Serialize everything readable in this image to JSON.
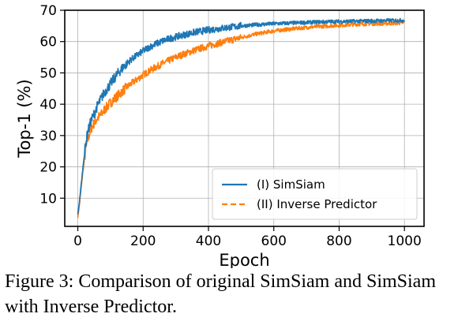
{
  "chart_data": {
    "type": "line",
    "xlabel": "Epoch",
    "ylabel": "Top-1 (%)",
    "xlim": [
      -40,
      1060
    ],
    "ylim": [
      1,
      70
    ],
    "xticks": [
      0,
      200,
      400,
      600,
      800,
      1000
    ],
    "yticks": [
      10,
      20,
      30,
      40,
      50,
      60,
      70
    ],
    "grid": true,
    "legend_position": "lower-right",
    "series": [
      {
        "name": "(I) SimSiam",
        "color": "#1f77b4",
        "linestyle": "solid",
        "x": [
          0,
          5,
          10,
          15,
          20,
          25,
          30,
          40,
          50,
          60,
          70,
          80,
          100,
          120,
          140,
          160,
          180,
          200,
          220,
          240,
          260,
          280,
          300,
          330,
          360,
          400,
          450,
          500,
          550,
          600,
          650,
          700,
          750,
          800,
          850,
          900,
          950,
          1000
        ],
        "y": [
          5,
          9,
          14,
          19,
          24,
          28,
          31,
          34.5,
          37,
          39.5,
          41.5,
          43.5,
          46.5,
          49.5,
          52,
          54,
          55.5,
          57,
          58.3,
          59.3,
          60.2,
          60.9,
          61.5,
          62.3,
          63,
          63.7,
          64.4,
          65,
          65.4,
          65.7,
          65.9,
          66.1,
          66.3,
          66.4,
          66.5,
          66.6,
          66.7,
          66.8
        ]
      },
      {
        "name": "(II) Inverse Predictor",
        "color": "#ff7f0e",
        "linestyle": "dashed",
        "x": [
          0,
          5,
          10,
          15,
          20,
          25,
          30,
          40,
          50,
          60,
          70,
          80,
          100,
          120,
          140,
          160,
          180,
          200,
          220,
          240,
          260,
          280,
          300,
          330,
          360,
          400,
          450,
          500,
          550,
          600,
          650,
          700,
          750,
          800,
          850,
          900,
          950,
          1000
        ],
        "y": [
          4,
          8,
          13,
          18,
          22,
          26,
          28.5,
          32,
          34,
          35.5,
          36.5,
          38,
          40.5,
          42.5,
          44.5,
          46.3,
          47.8,
          49.3,
          50.7,
          51.9,
          53,
          54,
          55,
          56.2,
          57.3,
          58.6,
          60,
          61.3,
          62.5,
          63.4,
          64,
          64.5,
          64.9,
          65.2,
          65.5,
          65.7,
          65.8,
          66
        ]
      }
    ]
  },
  "caption": {
    "text": "Figure 3: Comparison of original SimSiam and SimSiam with Inverse Predictor."
  }
}
